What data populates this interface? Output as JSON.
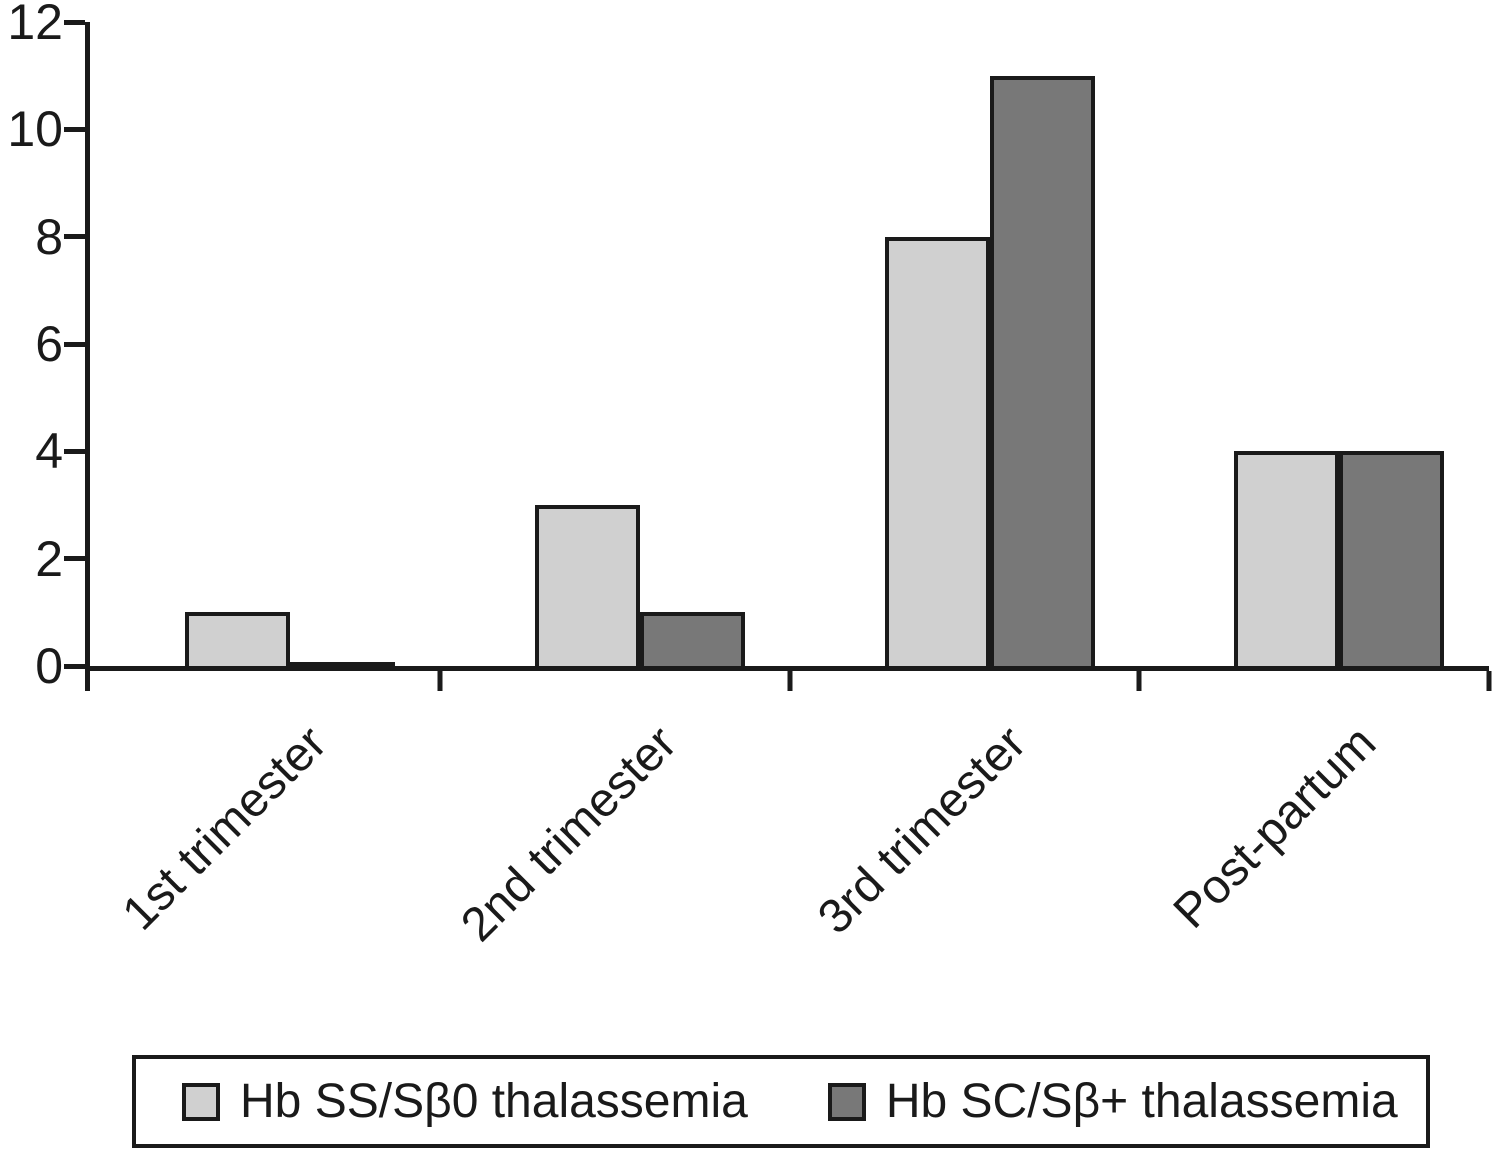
{
  "chart_data": {
    "type": "bar",
    "categories": [
      "1st trimester",
      "2nd trimester",
      "3rd trimester",
      "Post-partum"
    ],
    "series": [
      {
        "name": "Hb SS/Sβ0 thalassemia",
        "color": "#d0d0d0",
        "values": [
          1,
          3,
          8,
          4
        ]
      },
      {
        "name": "Hb SC/Sβ+ thalassemia",
        "color": "#787878",
        "values": [
          0,
          1,
          11,
          4
        ]
      }
    ],
    "ylim": [
      0,
      12
    ],
    "yticks": [
      0,
      2,
      4,
      6,
      8,
      10,
      12
    ],
    "xticks_shown_as_group_boundaries": true,
    "grid": false,
    "legend_position": "bottom",
    "axis_color": "#1a1a1a",
    "bar_outline_color": "#1a1a1a",
    "text_color": "#1a1a1a",
    "background_color": "#ffffff"
  }
}
